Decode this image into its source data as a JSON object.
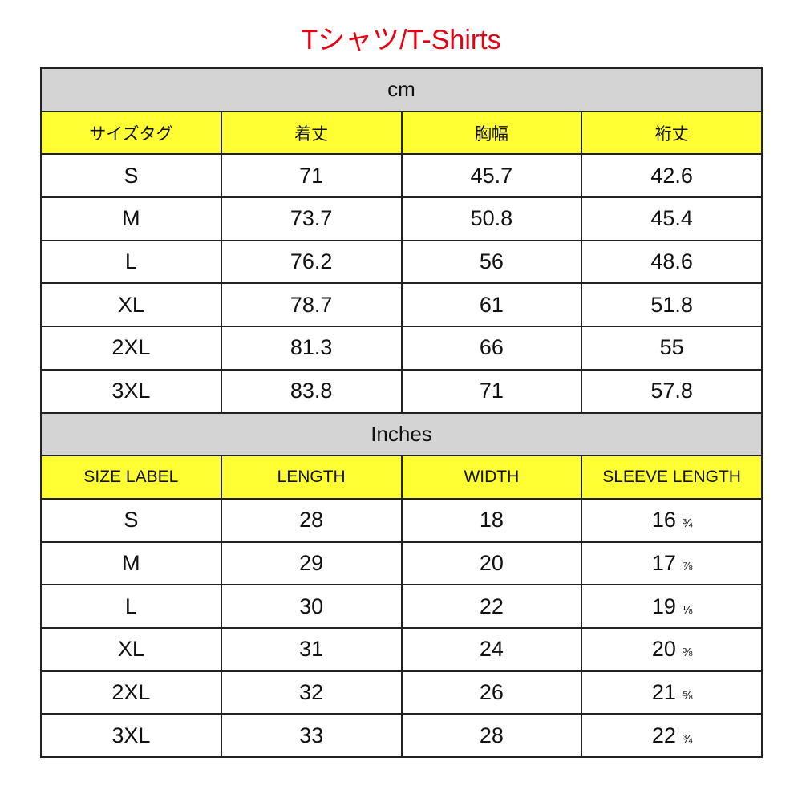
{
  "title": "Tシャツ/T-Shirts",
  "colors": {
    "title": "#e60012",
    "section_bg": "#d4d4d4",
    "header_bg": "#ffff33"
  },
  "cm": {
    "section": "cm",
    "headers": [
      "サイズタグ",
      "着丈",
      "胸幅",
      "裄丈"
    ],
    "rows": [
      [
        "S",
        "71",
        "45.7",
        "42.6"
      ],
      [
        "M",
        "73.7",
        "50.8",
        "45.4"
      ],
      [
        "L",
        "76.2",
        "56",
        "48.6"
      ],
      [
        "XL",
        "78.7",
        "61",
        "51.8"
      ],
      [
        "2XL",
        "81.3",
        "66",
        "55"
      ],
      [
        "3XL",
        "83.8",
        "71",
        "57.8"
      ]
    ]
  },
  "inches": {
    "section": "Inches",
    "headers": [
      "SIZE LABEL",
      "LENGTH",
      "WIDTH",
      "SLEEVE LENGTH"
    ],
    "rows": [
      [
        "S",
        "28",
        "18",
        "16",
        "¾"
      ],
      [
        "M",
        "29",
        "20",
        "17",
        "⅞"
      ],
      [
        "L",
        "30",
        "22",
        "19",
        "⅛"
      ],
      [
        "XL",
        "31",
        "24",
        "20",
        "⅜"
      ],
      [
        "2XL",
        "32",
        "26",
        "21",
        "⅝"
      ],
      [
        "3XL",
        "33",
        "28",
        "22",
        "¾"
      ]
    ]
  }
}
